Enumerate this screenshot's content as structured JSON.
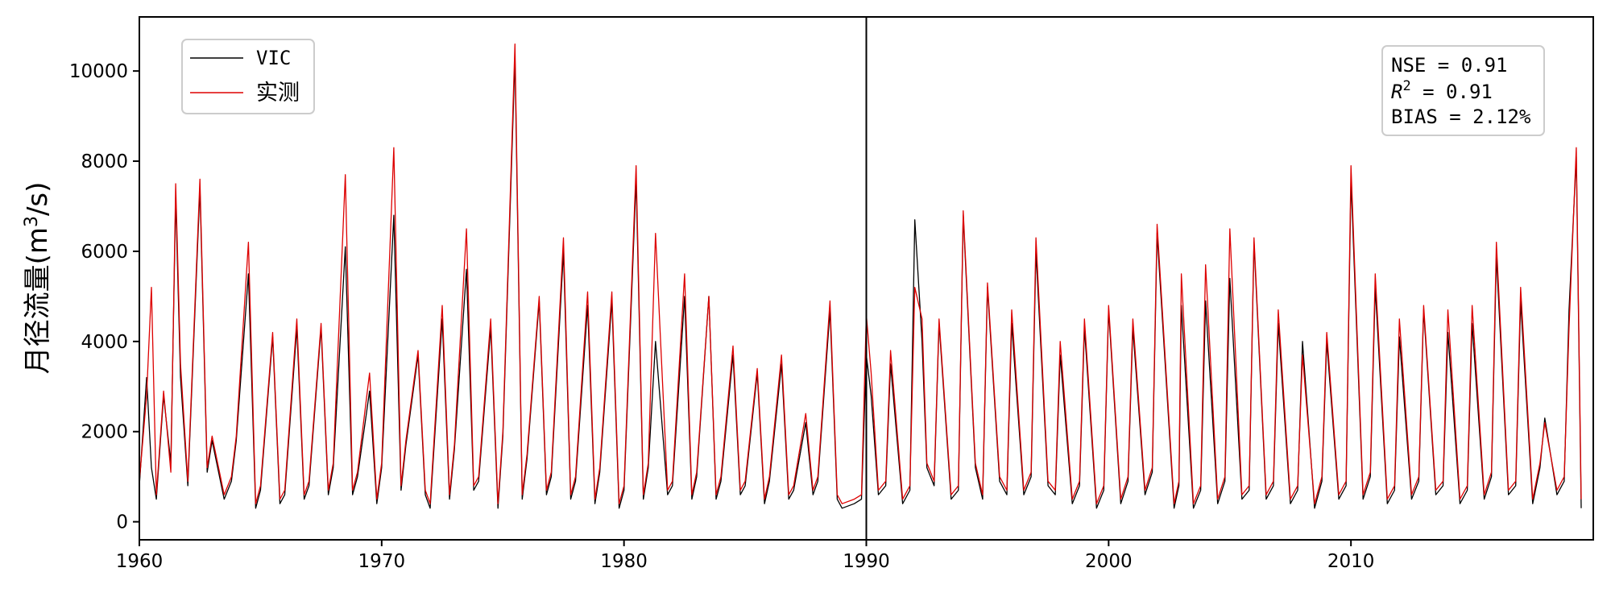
{
  "chart_data": {
    "type": "line",
    "title": "",
    "xlabel": "",
    "ylabel": "月径流量(m³/s)",
    "ylabel_parts": {
      "main": "月径流量(m",
      "sup": "3",
      "tail": "/s)"
    },
    "xlim": [
      1960,
      2020
    ],
    "ylim": [
      -400,
      11200
    ],
    "x_ticks": [
      1960,
      1970,
      1980,
      1990,
      2000,
      2010
    ],
    "y_ticks": [
      0,
      2000,
      4000,
      6000,
      8000,
      10000
    ],
    "grid": false,
    "legend_position": "top-left",
    "vertical_line_x": 1990,
    "stats_box": {
      "position": "top-right",
      "nse": "NSE = 0.91",
      "r2_prefix": "R",
      "r2_sup": "2",
      "r2_value": " = 0.91",
      "bias": "BIAS = 2.12%"
    },
    "series": [
      {
        "name": "VIC",
        "color": "#000000",
        "x": [
          1960.0,
          1960.3,
          1960.5,
          1960.7,
          1961.0,
          1961.3,
          1961.5,
          1961.7,
          1962.0,
          1962.5,
          1962.8,
          1963.0,
          1963.5,
          1963.8,
          1964.0,
          1964.5,
          1964.8,
          1965.0,
          1965.5,
          1965.8,
          1966.0,
          1966.5,
          1966.8,
          1967.0,
          1967.5,
          1967.8,
          1968.0,
          1968.5,
          1968.8,
          1969.0,
          1969.5,
          1969.8,
          1970.0,
          1970.5,
          1970.8,
          1971.0,
          1971.5,
          1971.8,
          1972.0,
          1972.5,
          1972.8,
          1973.0,
          1973.5,
          1973.8,
          1974.0,
          1974.5,
          1974.8,
          1975.0,
          1975.5,
          1975.8,
          1976.0,
          1976.5,
          1976.8,
          1977.0,
          1977.5,
          1977.8,
          1978.0,
          1978.5,
          1978.8,
          1979.0,
          1979.5,
          1979.8,
          1980.0,
          1980.5,
          1980.8,
          1981.0,
          1981.3,
          1981.8,
          1982.0,
          1982.5,
          1982.8,
          1983.0,
          1983.5,
          1983.8,
          1984.0,
          1984.5,
          1984.8,
          1985.0,
          1985.5,
          1985.8,
          1986.0,
          1986.5,
          1986.8,
          1987.0,
          1987.5,
          1987.8,
          1988.0,
          1988.5,
          1988.8,
          1989.0,
          1989.5,
          1989.8,
          1990.0,
          1990.2,
          1990.5,
          1990.8,
          1991.0,
          1991.5,
          1991.8,
          1992.0,
          1992.3,
          1992.5,
          1992.8,
          1993.0,
          1993.5,
          1993.8,
          1994.0,
          1994.5,
          1994.8,
          1995.0,
          1995.5,
          1995.8,
          1996.0,
          1996.5,
          1996.8,
          1997.0,
          1997.5,
          1997.8,
          1998.0,
          1998.5,
          1998.8,
          1999.0,
          1999.5,
          1999.8,
          2000.0,
          2000.5,
          2000.8,
          2001.0,
          2001.5,
          2001.8,
          2002.0,
          2002.7,
          2002.9,
          2003.0,
          2003.5,
          2003.8,
          2004.0,
          2004.5,
          2004.8,
          2005.0,
          2005.5,
          2005.8,
          2006.0,
          2006.5,
          2006.8,
          2007.0,
          2007.5,
          2007.8,
          2008.0,
          2008.5,
          2008.8,
          2009.0,
          2009.5,
          2009.8,
          2010.0,
          2010.5,
          2010.8,
          2011.0,
          2011.5,
          2011.8,
          2012.0,
          2012.5,
          2012.8,
          2013.0,
          2013.5,
          2013.8,
          2014.0,
          2014.5,
          2014.8,
          2015.0,
          2015.5,
          2015.8,
          2016.0,
          2016.5,
          2016.8,
          2017.0,
          2017.5,
          2017.8,
          2018.0,
          2018.5,
          2018.8,
          2019.0,
          2019.3,
          2019.5
        ],
        "y": [
          800,
          3200,
          1200,
          500,
          2800,
          1300,
          7200,
          3200,
          800,
          7400,
          1100,
          1800,
          500,
          900,
          1800,
          5500,
          300,
          700,
          4100,
          400,
          600,
          4300,
          500,
          800,
          4300,
          600,
          1200,
          6100,
          600,
          1000,
          2900,
          400,
          1200,
          6800,
          700,
          1700,
          3700,
          600,
          300,
          4500,
          500,
          1600,
          5600,
          700,
          900,
          4300,
          300,
          1900,
          10300,
          500,
          1400,
          4900,
          600,
          1000,
          6000,
          500,
          900,
          4800,
          400,
          1100,
          4900,
          300,
          700,
          7600,
          500,
          1200,
          4000,
          600,
          800,
          5000,
          500,
          1000,
          5000,
          500,
          900,
          3700,
          600,
          800,
          3300,
          400,
          900,
          3500,
          500,
          700,
          2200,
          600,
          900,
          4700,
          500,
          300,
          400,
          500,
          3700,
          2800,
          600,
          800,
          3500,
          400,
          700,
          6700,
          4000,
          1200,
          800,
          4400,
          500,
          700,
          6800,
          1200,
          500,
          5200,
          900,
          600,
          4400,
          600,
          1000,
          6000,
          800,
          600,
          3700,
          400,
          800,
          4300,
          300,
          700,
          4700,
          400,
          900,
          4300,
          600,
          1100,
          6400,
          300,
          800,
          4800,
          300,
          700,
          4900,
          400,
          900,
          5400,
          500,
          700,
          6200,
          500,
          800,
          4400,
          400,
          700,
          4000,
          300,
          900,
          4000,
          500,
          800,
          7600,
          500,
          1000,
          5200,
          400,
          700,
          4100,
          500,
          900,
          4700,
          600,
          800,
          4200,
          400,
          700,
          4400,
          500,
          1000,
          5900,
          600,
          800,
          4900,
          400,
          1200,
          2300,
          600,
          900,
          4700,
          8100,
          300
        ]
      },
      {
        "name": "实测",
        "color": "#dd0000",
        "x": [
          1960.0,
          1960.3,
          1960.5,
          1960.7,
          1961.0,
          1961.3,
          1961.5,
          1961.7,
          1962.0,
          1962.5,
          1962.8,
          1963.0,
          1963.5,
          1963.8,
          1964.0,
          1964.5,
          1964.8,
          1965.0,
          1965.5,
          1965.8,
          1966.0,
          1966.5,
          1966.8,
          1967.0,
          1967.5,
          1967.8,
          1968.0,
          1968.5,
          1968.8,
          1969.0,
          1969.5,
          1969.8,
          1970.0,
          1970.5,
          1970.8,
          1971.0,
          1971.5,
          1971.8,
          1972.0,
          1972.5,
          1972.8,
          1973.0,
          1973.5,
          1973.8,
          1974.0,
          1974.5,
          1974.8,
          1975.0,
          1975.5,
          1975.8,
          1976.0,
          1976.5,
          1976.8,
          1977.0,
          1977.5,
          1977.8,
          1978.0,
          1978.5,
          1978.8,
          1979.0,
          1979.5,
          1979.8,
          1980.0,
          1980.5,
          1980.8,
          1981.0,
          1981.3,
          1981.8,
          1982.0,
          1982.5,
          1982.8,
          1983.0,
          1983.5,
          1983.8,
          1984.0,
          1984.5,
          1984.8,
          1985.0,
          1985.5,
          1985.8,
          1986.0,
          1986.5,
          1986.8,
          1987.0,
          1987.5,
          1987.8,
          1988.0,
          1988.5,
          1988.8,
          1989.0,
          1989.5,
          1989.8,
          1990.0,
          1990.2,
          1990.5,
          1990.8,
          1991.0,
          1991.5,
          1991.8,
          1992.0,
          1992.3,
          1992.5,
          1992.8,
          1993.0,
          1993.5,
          1993.8,
          1994.0,
          1994.5,
          1994.8,
          1995.0,
          1995.5,
          1995.8,
          1996.0,
          1996.5,
          1996.8,
          1997.0,
          1997.5,
          1997.8,
          1998.0,
          1998.5,
          1998.8,
          1999.0,
          1999.5,
          1999.8,
          2000.0,
          2000.5,
          2000.8,
          2001.0,
          2001.5,
          2001.8,
          2002.0,
          2002.7,
          2002.9,
          2003.0,
          2003.5,
          2003.8,
          2004.0,
          2004.5,
          2004.8,
          2005.0,
          2005.5,
          2005.8,
          2006.0,
          2006.5,
          2006.8,
          2007.0,
          2007.5,
          2007.8,
          2008.0,
          2008.5,
          2008.8,
          2009.0,
          2009.5,
          2009.8,
          2010.0,
          2010.5,
          2010.8,
          2011.0,
          2011.5,
          2011.8,
          2012.0,
          2012.5,
          2012.8,
          2013.0,
          2013.5,
          2013.8,
          2014.0,
          2014.5,
          2014.8,
          2015.0,
          2015.5,
          2015.8,
          2016.0,
          2016.5,
          2016.8,
          2017.0,
          2017.5,
          2017.8,
          2018.0,
          2018.5,
          2018.8,
          2019.0,
          2019.3,
          2019.5
        ],
        "y": [
          900,
          2800,
          5200,
          600,
          2900,
          1100,
          7500,
          3500,
          900,
          7600,
          1200,
          1900,
          600,
          1000,
          1900,
          6200,
          400,
          800,
          4200,
          500,
          700,
          4500,
          600,
          900,
          4400,
          700,
          1300,
          7700,
          700,
          1100,
          3300,
          500,
          1300,
          8300,
          800,
          1800,
          3800,
          700,
          400,
          4800,
          600,
          1700,
          6500,
          800,
          1000,
          4500,
          400,
          2000,
          10600,
          600,
          1500,
          5000,
          700,
          1100,
          6300,
          600,
          1000,
          5100,
          500,
          1200,
          5100,
          400,
          800,
          7900,
          600,
          1300,
          6400,
          700,
          900,
          5500,
          600,
          1100,
          5000,
          600,
          1000,
          3900,
          700,
          900,
          3400,
          500,
          1000,
          3700,
          600,
          800,
          2400,
          700,
          1000,
          4900,
          600,
          400,
          500,
          600,
          4600,
          3300,
          700,
          900,
          3800,
          500,
          800,
          5200,
          4500,
          1300,
          900,
          4500,
          600,
          800,
          6900,
          1300,
          600,
          5300,
          1000,
          700,
          4700,
          700,
          1100,
          6300,
          900,
          700,
          4000,
          500,
          900,
          4500,
          400,
          800,
          4800,
          500,
          1000,
          4500,
          700,
          1200,
          6600,
          400,
          900,
          5500,
          400,
          800,
          5700,
          500,
          1000,
          6500,
          600,
          800,
          6300,
          600,
          900,
          4700,
          500,
          800,
          3700,
          400,
          1000,
          4200,
          600,
          900,
          7900,
          600,
          1100,
          5500,
          500,
          800,
          4500,
          600,
          1000,
          4800,
          700,
          900,
          4700,
          500,
          800,
          4800,
          600,
          1100,
          6200,
          700,
          900,
          5200,
          500,
          1300,
          2200,
          700,
          1000,
          4300,
          8300,
          500
        ]
      }
    ]
  }
}
